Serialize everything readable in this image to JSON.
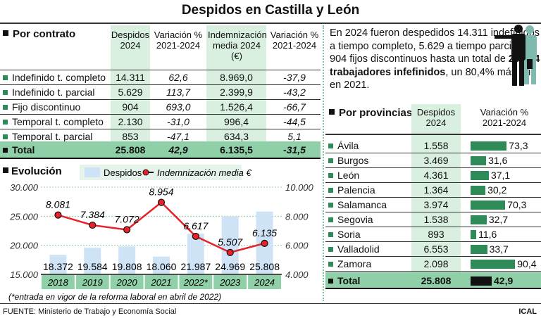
{
  "title": "Despidos en Castilla y León",
  "contrato": {
    "heading": "Por contrato",
    "headers": [
      "Despidos 2024",
      "Variación % 2021-2024",
      "Indemnización media 2024 (€)",
      "Variación % 2021-2024"
    ],
    "rows": [
      {
        "label": "Indefinido t. completo",
        "despidos": "14.311",
        "var1": "62,6",
        "indem": "8.969,0",
        "var2": "-37,9"
      },
      {
        "label": "Indefinido t. parcial",
        "despidos": "5.629",
        "var1": "113,7",
        "indem": "2.399,9",
        "var2": "-43,2"
      },
      {
        "label": "Fijo discontinuo",
        "despidos": "904",
        "var1": "693,0",
        "indem": "1.526,4",
        "var2": "-66,7"
      },
      {
        "label": "Temporal t. completo",
        "despidos": "2.130",
        "var1": "-31,0",
        "indem": "996,4",
        "var2": "-44,5"
      },
      {
        "label": "Temporal t. parcial",
        "despidos": "853",
        "var1": "-47,1",
        "indem": "634,3",
        "var2": "5,1"
      }
    ],
    "total": {
      "label": "Total",
      "despidos": "25.808",
      "var1": "42,9",
      "indem": "6.135,5",
      "var2": "-31,5"
    }
  },
  "intro": {
    "t1": "En 2024 fueron despedidos 14.311 indefinidos a tiempo completo, 5.629 a tiempo parcial, y 904 fijos discontinuos hasta un total de ",
    "bold": "20.844 trabajadores infefinidos",
    "t2": ", un 80,4% más que en 2021."
  },
  "provincias": {
    "heading": "Por provincias",
    "h1": "Despidos 2024",
    "h2": "Variación % 2021-2024",
    "rows": [
      {
        "label": "Ávila",
        "despidos": "1.558",
        "var": 73.3,
        "var_label": "73,3"
      },
      {
        "label": "Burgos",
        "despidos": "3.469",
        "var": 31.6,
        "var_label": "31,6"
      },
      {
        "label": "León",
        "despidos": "4.361",
        "var": 37.1,
        "var_label": "37,1"
      },
      {
        "label": "Palencia",
        "despidos": "1.364",
        "var": 30.2,
        "var_label": "30,2"
      },
      {
        "label": "Salamanca",
        "despidos": "3.974",
        "var": 70.3,
        "var_label": "70,3"
      },
      {
        "label": "Segovia",
        "despidos": "1.538",
        "var": 32.7,
        "var_label": "32,7"
      },
      {
        "label": "Soria",
        "despidos": "893",
        "var": 11.6,
        "var_label": "11,6"
      },
      {
        "label": "Valladolid",
        "despidos": "6.553",
        "var": 33.7,
        "var_label": "33,7"
      },
      {
        "label": "Zamora",
        "despidos": "2.098",
        "var": 90.4,
        "var_label": "90,4"
      }
    ],
    "total": {
      "label": "Total",
      "despidos": "25.808",
      "var": 42.9,
      "var_label": "42,9"
    }
  },
  "chart_data": {
    "type": "bar+line",
    "title": "Evolución",
    "categories": [
      "2018",
      "2019",
      "2020",
      "2021",
      "2022*",
      "2023",
      "2024"
    ],
    "series": [
      {
        "name": "Despidos",
        "type": "bar",
        "axis": "left",
        "values": [
          18372,
          19584,
          19808,
          18060,
          21987,
          24969,
          25808
        ],
        "labels": [
          "18.372",
          "19.584",
          "19.808",
          "18.060",
          "21.987",
          "24.969",
          "25.808"
        ],
        "color": "#cfe3f7"
      },
      {
        "name": "Indemnización media €",
        "type": "line",
        "axis": "right",
        "values": [
          8081,
          7384,
          7072,
          8954,
          6617,
          5507,
          6135
        ],
        "labels": [
          "8.081",
          "7.384",
          "7.072",
          "8.954",
          "6.617",
          "5.507",
          "6.135"
        ],
        "color": "#e8222a"
      }
    ],
    "left_ylim": [
      15000,
      30000
    ],
    "left_ticks": [
      "15.000",
      "20.000",
      "25.000",
      "30.000"
    ],
    "right_ylim": [
      4000,
      10000
    ],
    "right_ticks": [
      "4.000",
      "6.000",
      "8.000",
      "10.000"
    ],
    "legend": "top",
    "grid": true,
    "footnote": "(*entrada en vigor de la reforma laboral en abril de 2022)"
  },
  "footer": {
    "source": "FUENTE: Ministerio de Trabajo y Economía Social",
    "brand": "ICAL"
  }
}
